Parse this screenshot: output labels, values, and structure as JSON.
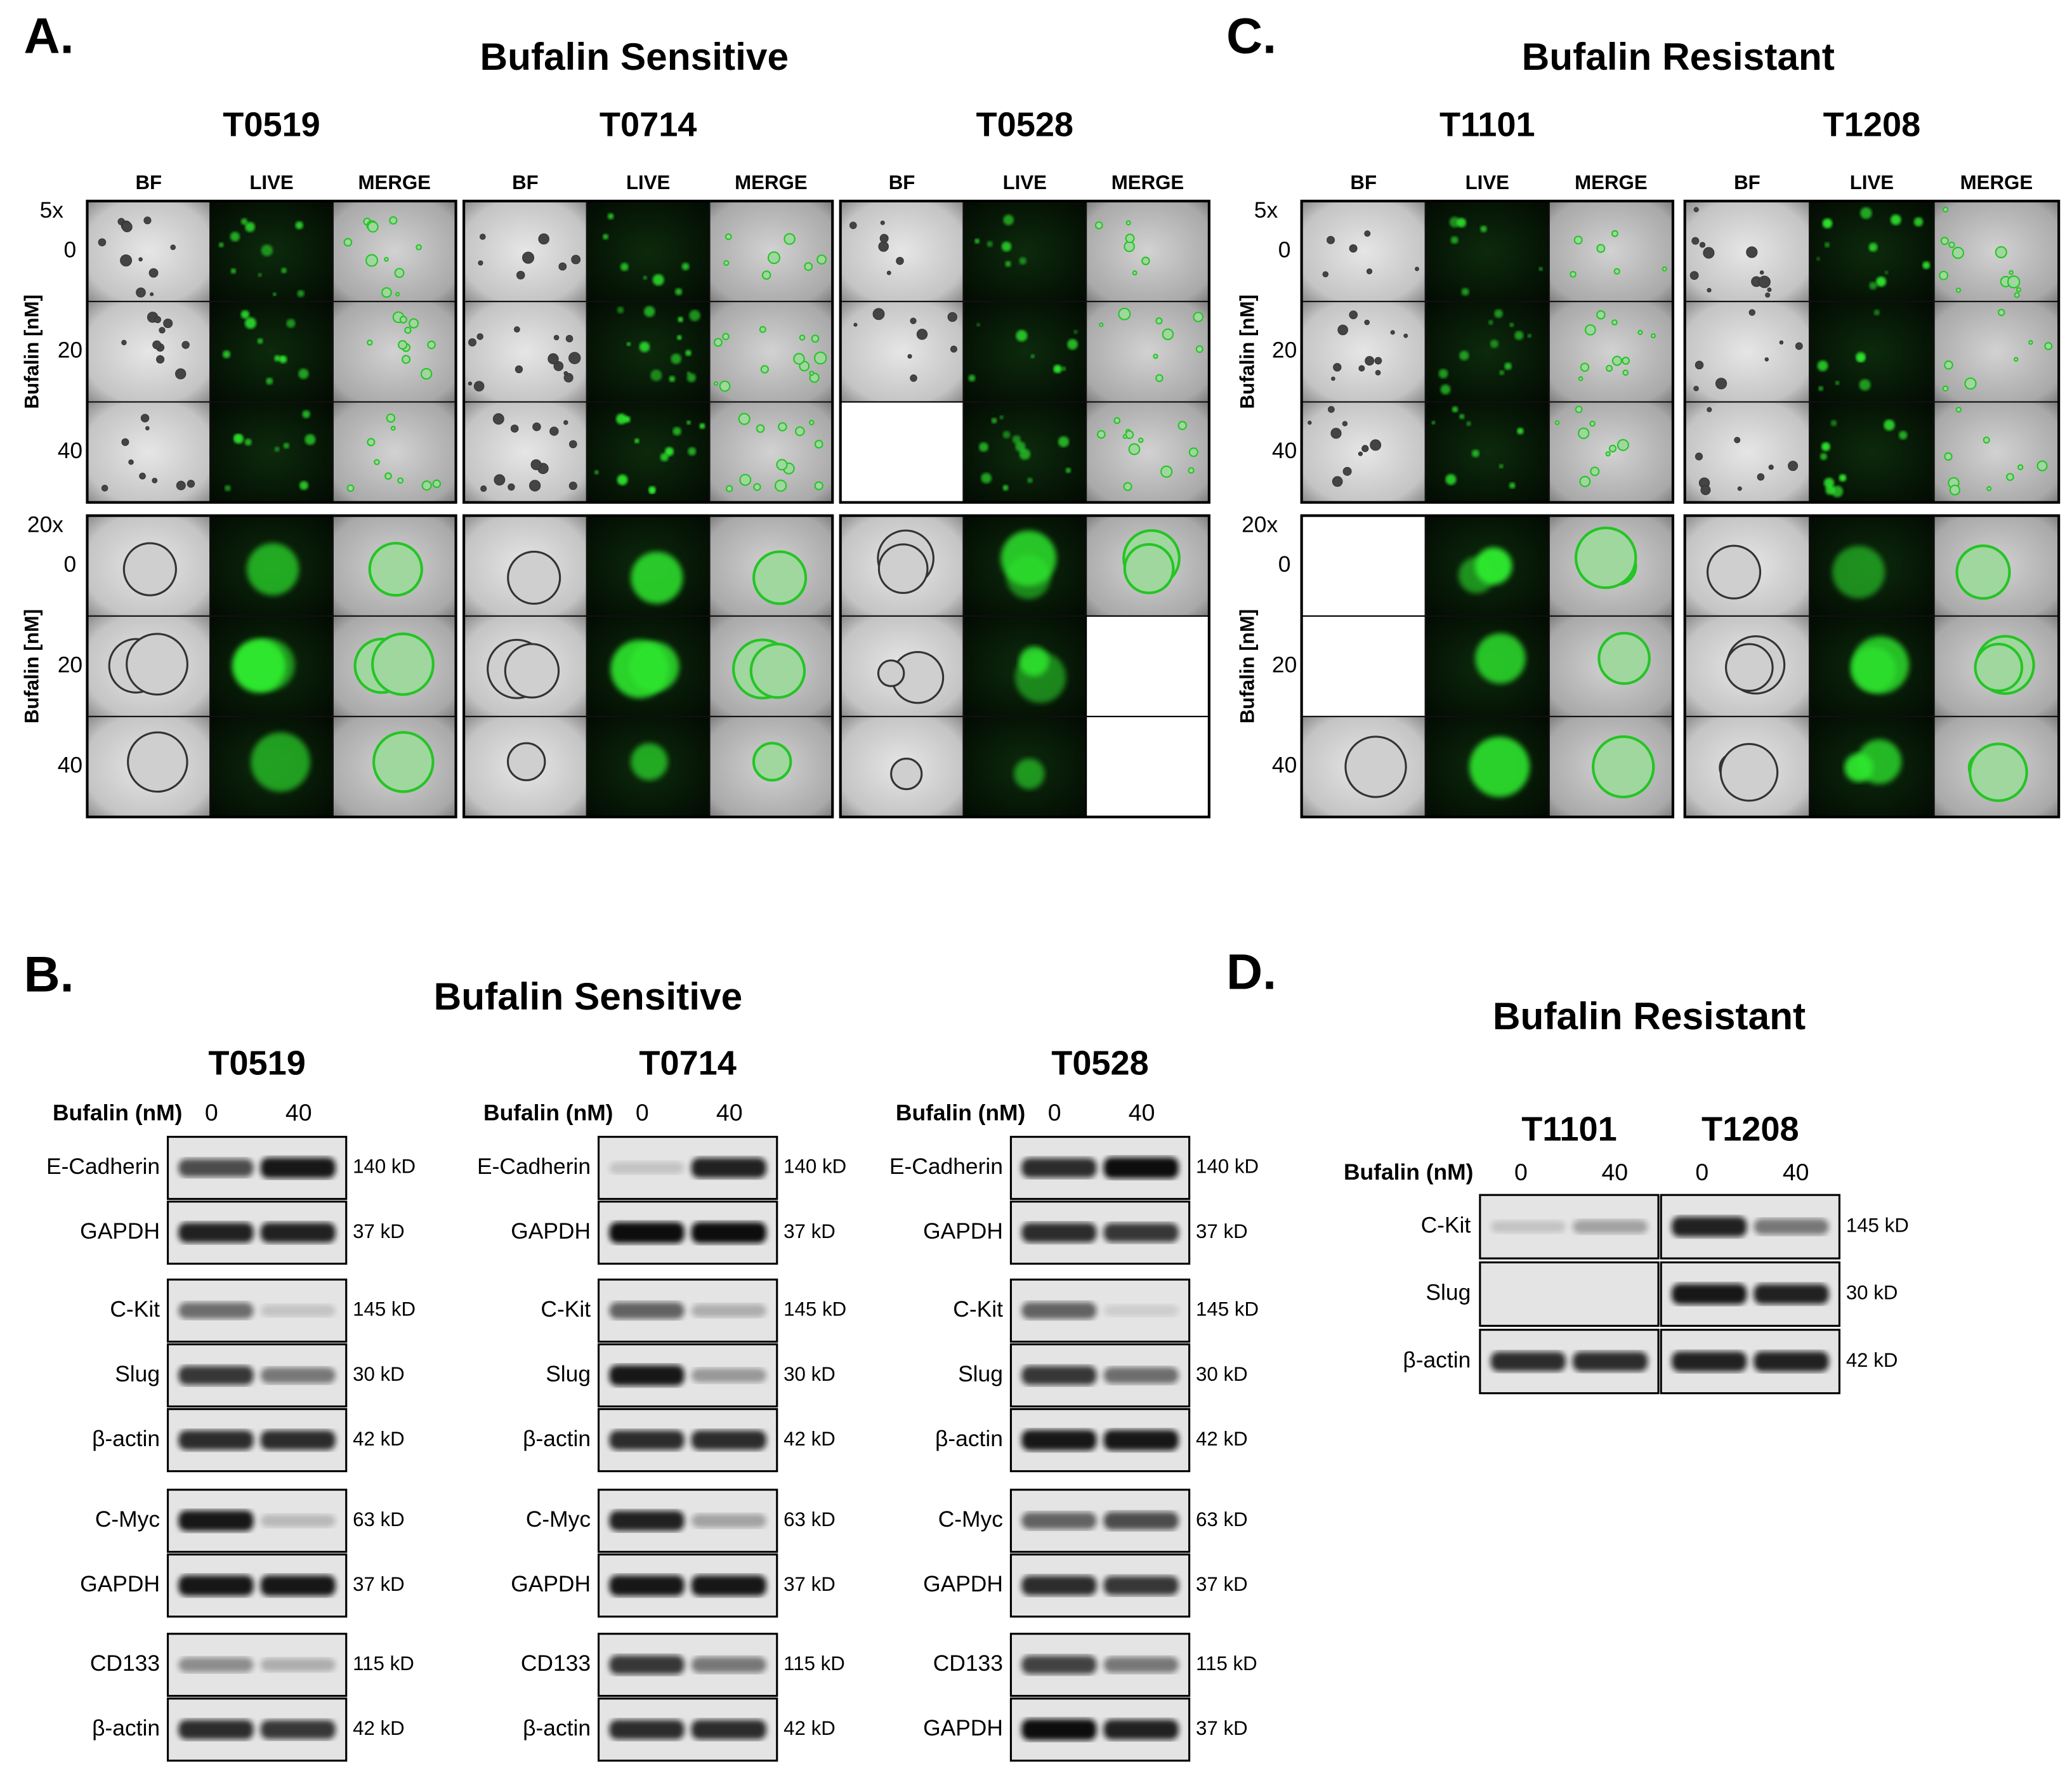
{
  "figure": {
    "panel_a": {
      "letter": "A.",
      "title": "Bufalin Sensitive",
      "samples": [
        "T0519",
        "T0714",
        "T0528"
      ],
      "columns": [
        "BF",
        "LIVE",
        "MERGE"
      ],
      "magnifications": [
        "5x",
        "20x"
      ],
      "doses": [
        0,
        20,
        40
      ],
      "axis_label": "Bufalin [nM]"
    },
    "panel_c": {
      "letter": "C.",
      "title": "Bufalin Resistant",
      "samples": [
        "T1101",
        "T1208"
      ],
      "columns": [
        "BF",
        "LIVE",
        "MERGE"
      ],
      "magnifications": [
        "5x",
        "20x"
      ],
      "doses": [
        0,
        20,
        40
      ],
      "axis_label": "Bufalin [nM]"
    },
    "panel_b": {
      "letter": "B.",
      "title": "Bufalin Sensitive",
      "dose_label": "Bufalin (nM)",
      "doses": [
        0,
        40
      ],
      "samples": [
        {
          "name": "T0519",
          "groups": [
            [
              {
                "protein": "E-Cadherin",
                "size": "140 kD"
              },
              {
                "protein": "GAPDH",
                "size": "37 kD"
              }
            ],
            [
              {
                "protein": "C-Kit",
                "size": "145 kD"
              },
              {
                "protein": "Slug",
                "size": "30 kD"
              },
              {
                "protein": "β-actin",
                "size": "42 kD"
              }
            ],
            [
              {
                "protein": "C-Myc",
                "size": "63 kD"
              },
              {
                "protein": "GAPDH",
                "size": "37 kD"
              }
            ],
            [
              {
                "protein": "CD133",
                "size": "115 kD"
              },
              {
                "protein": "β-actin",
                "size": "42 kD"
              }
            ]
          ]
        },
        {
          "name": "T0714",
          "groups": [
            [
              {
                "protein": "E-Cadherin",
                "size": "140 kD"
              },
              {
                "protein": "GAPDH",
                "size": "37 kD"
              }
            ],
            [
              {
                "protein": "C-Kit",
                "size": "145 kD"
              },
              {
                "protein": "Slug",
                "size": "30 kD"
              },
              {
                "protein": "β-actin",
                "size": "42 kD"
              }
            ],
            [
              {
                "protein": "C-Myc",
                "size": "63 kD"
              },
              {
                "protein": "GAPDH",
                "size": "37 kD"
              }
            ],
            [
              {
                "protein": "CD133",
                "size": "115 kD"
              },
              {
                "protein": "β-actin",
                "size": "42 kD"
              }
            ]
          ]
        },
        {
          "name": "T0528",
          "groups": [
            [
              {
                "protein": "E-Cadherin",
                "size": "140 kD"
              },
              {
                "protein": "GAPDH",
                "size": "37 kD"
              }
            ],
            [
              {
                "protein": "C-Kit",
                "size": "145 kD"
              },
              {
                "protein": "Slug",
                "size": "30 kD"
              },
              {
                "protein": "β-actin",
                "size": "42 kD"
              }
            ],
            [
              {
                "protein": "C-Myc",
                "size": "63 kD"
              },
              {
                "protein": "GAPDH",
                "size": "37 kD"
              }
            ],
            [
              {
                "protein": "CD133",
                "size": "115 kD"
              },
              {
                "protein": "GAPDH",
                "size": "37 kD"
              }
            ]
          ]
        }
      ]
    },
    "panel_d": {
      "letter": "D.",
      "title": "Bufalin Resistant",
      "dose_label": "Bufalin (nM)",
      "doses": [
        0,
        40
      ],
      "samples": [
        "T1101",
        "T1208"
      ],
      "blots": [
        {
          "protein": "C-Kit",
          "size": "145 kD"
        },
        {
          "protein": "Slug",
          "size": "30 kD"
        },
        {
          "protein": "β-actin",
          "size": "42 kD"
        }
      ]
    }
  }
}
